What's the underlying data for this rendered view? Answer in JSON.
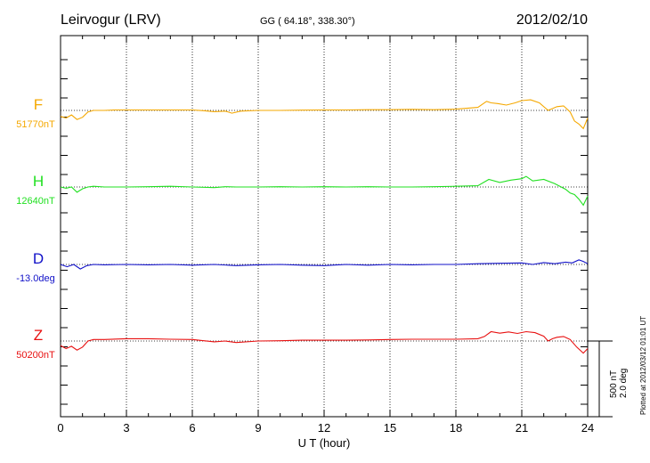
{
  "header": {
    "station": "Leirvogur (LRV)",
    "coords": "GG ( 64.18°, 338.30°)",
    "date": "2012/02/10"
  },
  "footer": {
    "plotted": "Plotted at 2012/03/12 01:01 UT"
  },
  "scale_bar": {
    "label1": "500 nT",
    "label2": "2.0 deg"
  },
  "colors": {
    "F": "#f5a800",
    "H": "#21e021",
    "D": "#1010c8",
    "Z": "#e81010",
    "frame": "#000000",
    "grid": "#000000"
  },
  "chart_data": {
    "type": "line",
    "xlabel": "U T (hour)",
    "xlim": [
      0,
      24
    ],
    "xticks": [
      "0",
      "3",
      "6",
      "9",
      "12",
      "15",
      "18",
      "21",
      "24"
    ],
    "nT_per_scale_bar": 500,
    "deg_per_scale_bar": 2.0,
    "series": [
      {
        "name": "F",
        "baseline_label": "51770nT",
        "baseline": 51770,
        "unit": "nT",
        "x": [
          0,
          0.25,
          0.5,
          0.75,
          1,
          1.25,
          1.5,
          2,
          2.5,
          3,
          4,
          5,
          6,
          6.5,
          7,
          7.5,
          7.8,
          8.2,
          9,
          10,
          11,
          12,
          13,
          14,
          15,
          16,
          17,
          18,
          19,
          19.4,
          19.6,
          19.9,
          20.3,
          20.7,
          21,
          21.4,
          21.8,
          22.2,
          22.6,
          22.9,
          23.2,
          23.4,
          23.6,
          23.8,
          24
        ],
        "y": [
          51730,
          51720,
          51740,
          51710,
          51725,
          51760,
          51770,
          51770,
          51773,
          51773,
          51773,
          51773,
          51773,
          51768,
          51762,
          51765,
          51752,
          51765,
          51770,
          51770,
          51772,
          51773,
          51773,
          51775,
          51775,
          51777,
          51775,
          51778,
          51790,
          51830,
          51820,
          51815,
          51805,
          51820,
          51835,
          51840,
          51820,
          51770,
          51795,
          51800,
          51760,
          51700,
          51680,
          51650,
          51720
        ]
      },
      {
        "name": "H",
        "baseline_label": "12640nT",
        "baseline": 12640,
        "unit": "nT",
        "x": [
          0,
          0.25,
          0.5,
          0.75,
          1,
          1.25,
          1.5,
          2,
          3,
          4,
          5,
          6,
          7,
          7.5,
          8,
          9,
          10,
          11,
          12,
          13,
          14,
          15,
          16,
          17,
          18,
          19,
          19.5,
          20,
          20.5,
          21,
          21.2,
          21.5,
          22,
          22.5,
          23,
          23.2,
          23.4,
          23.6,
          23.8,
          24
        ],
        "y": [
          12640,
          12632,
          12640,
          12605,
          12628,
          12640,
          12645,
          12640,
          12640,
          12642,
          12645,
          12640,
          12636,
          12642,
          12640,
          12640,
          12642,
          12640,
          12642,
          12640,
          12642,
          12640,
          12640,
          12642,
          12645,
          12648,
          12690,
          12670,
          12685,
          12695,
          12710,
          12680,
          12690,
          12662,
          12625,
          12600,
          12590,
          12560,
          12520,
          12580
        ]
      },
      {
        "name": "D",
        "baseline_label": "-13.0deg",
        "baseline": -13.0,
        "unit": "deg",
        "x": [
          0,
          0.3,
          0.6,
          0.9,
          1.2,
          1.5,
          2,
          3,
          4,
          5,
          6,
          7,
          8,
          9,
          10,
          11,
          12,
          13,
          14,
          15,
          16,
          17,
          18,
          19,
          20,
          21,
          21.5,
          22,
          22.5,
          23,
          23.3,
          23.6,
          23.8,
          24
        ],
        "y": [
          -13.0,
          -13.06,
          -13.0,
          -13.12,
          -13.03,
          -13.0,
          -13.01,
          -13.0,
          -13.01,
          -13.0,
          -13.02,
          -13.0,
          -13.03,
          -13.01,
          -13.0,
          -13.02,
          -13.03,
          -13.0,
          -13.02,
          -13.0,
          -13.01,
          -13.0,
          -13.0,
          -12.98,
          -12.97,
          -12.96,
          -13.0,
          -12.95,
          -12.98,
          -12.94,
          -12.96,
          -12.88,
          -12.92,
          -12.98
        ]
      },
      {
        "name": "Z",
        "baseline_label": "50200nT",
        "baseline": 50200,
        "unit": "nT",
        "x": [
          0,
          0.25,
          0.5,
          0.75,
          1,
          1.25,
          1.5,
          2,
          3,
          4,
          5,
          6,
          7,
          7.5,
          8,
          9,
          10,
          11,
          12,
          13,
          14,
          15,
          16,
          17,
          18,
          19,
          19.3,
          19.6,
          20,
          20.4,
          20.8,
          21.2,
          21.6,
          22,
          22.2,
          22.4,
          22.6,
          22.9,
          23.2,
          23.5,
          23.8,
          24
        ],
        "y": [
          50170,
          50150,
          50165,
          50140,
          50160,
          50200,
          50210,
          50210,
          50215,
          50215,
          50212,
          50210,
          50195,
          50200,
          50190,
          50200,
          50202,
          50205,
          50205,
          50205,
          50207,
          50210,
          50212,
          50212,
          50212,
          50215,
          50230,
          50262,
          50252,
          50260,
          50250,
          50262,
          50255,
          50232,
          50200,
          50215,
          50225,
          50230,
          50210,
          50160,
          50120,
          50150
        ]
      }
    ]
  }
}
